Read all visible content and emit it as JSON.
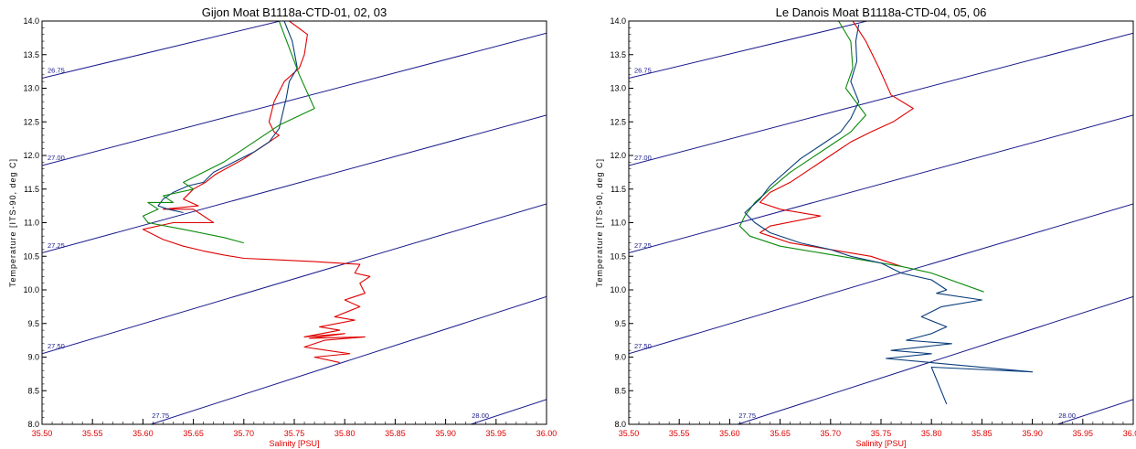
{
  "chart_data": [
    {
      "type": "line",
      "title": "Gijon Moat B1118a-CTD-01, 02, 03",
      "xlabel": "Salinity [PSU]",
      "ylabel": "Temperature [ITS-90, deg C]",
      "xlim": [
        35.5,
        36.0
      ],
      "ylim": [
        8.0,
        14.0
      ],
      "x_ticks": [
        "35.50",
        "35.55",
        "35.60",
        "35.65",
        "35.70",
        "35.75",
        "35.80",
        "35.85",
        "35.90",
        "35.95",
        "36.00"
      ],
      "y_ticks": [
        "8.0",
        "8.5",
        "9.0",
        "9.5",
        "10.0",
        "10.5",
        "11.0",
        "11.5",
        "12.0",
        "12.5",
        "13.0",
        "13.5",
        "14.0"
      ],
      "isopycnals": [
        {
          "label": "26.75",
          "points": [
            [
              35.5,
              13.15
            ],
            [
              36.0,
              14.95
            ]
          ]
        },
        {
          "label": "27.00",
          "points": [
            [
              35.5,
              11.85
            ],
            [
              36.0,
              13.82
            ]
          ]
        },
        {
          "label": "27.25",
          "points": [
            [
              35.5,
              10.55
            ],
            [
              36.0,
              12.6
            ]
          ]
        },
        {
          "label": "27.50",
          "points": [
            [
              35.5,
              9.05
            ],
            [
              36.0,
              11.28
            ]
          ]
        },
        {
          "label": "27.75",
          "points": [
            [
              35.608,
              8.0
            ],
            [
              36.0,
              9.9
            ]
          ]
        },
        {
          "label": "28.00",
          "points": [
            [
              35.925,
              8.0
            ],
            [
              36.0,
              8.37
            ]
          ]
        }
      ],
      "series": [
        {
          "color": "#e00000",
          "x": [
            35.745,
            35.763,
            35.76,
            35.755,
            35.74,
            35.73,
            35.725,
            35.73,
            35.735,
            35.73,
            35.72,
            35.71,
            35.7,
            35.688,
            35.672,
            35.662,
            35.65,
            35.64,
            35.655,
            35.62,
            35.65,
            35.67,
            35.63,
            35.6,
            35.62,
            35.64,
            35.66,
            35.68,
            35.7,
            35.73,
            35.77,
            35.815,
            35.81,
            35.825,
            35.815,
            35.82,
            35.8,
            35.815,
            35.79,
            35.81,
            35.775,
            35.795,
            35.76,
            35.8,
            35.765,
            35.82,
            35.78,
            35.76,
            35.805,
            35.77,
            35.795
          ],
          "y": [
            14.0,
            13.8,
            13.5,
            13.3,
            13.1,
            12.8,
            12.5,
            12.35,
            12.3,
            12.25,
            12.15,
            12.05,
            11.95,
            11.85,
            11.72,
            11.6,
            11.5,
            11.35,
            11.25,
            11.2,
            11.2,
            11.0,
            11.0,
            10.9,
            10.75,
            10.65,
            10.58,
            10.52,
            10.47,
            10.45,
            10.42,
            10.38,
            10.25,
            10.2,
            10.1,
            9.95,
            9.85,
            9.75,
            9.6,
            9.55,
            9.45,
            9.4,
            9.3,
            9.35,
            9.28,
            9.3,
            9.25,
            9.15,
            9.05,
            9.0,
            8.92
          ]
        },
        {
          "color": "#0a3d7a",
          "x": [
            35.74,
            35.748,
            35.753,
            35.745,
            35.742,
            35.738,
            35.735,
            35.73,
            35.725,
            35.71,
            35.69,
            35.67,
            35.66,
            35.645,
            35.63,
            35.62,
            35.615,
            35.625,
            35.64
          ],
          "y": [
            14.0,
            13.7,
            13.3,
            13.1,
            12.85,
            12.6,
            12.4,
            12.3,
            12.2,
            12.05,
            11.9,
            11.75,
            11.6,
            11.55,
            11.45,
            11.35,
            11.25,
            11.2,
            11.15
          ]
        },
        {
          "color": "#0a8a0a",
          "x": [
            35.735,
            35.745,
            35.755,
            35.77,
            35.735,
            35.72,
            35.7,
            35.68,
            35.66,
            35.64,
            35.65,
            35.62,
            35.63,
            35.605,
            35.615,
            35.6,
            35.605,
            35.64,
            35.68,
            35.7
          ],
          "y": [
            14.0,
            13.6,
            13.2,
            12.7,
            12.45,
            12.3,
            12.1,
            11.9,
            11.75,
            11.6,
            11.5,
            11.4,
            11.3,
            11.3,
            11.2,
            11.1,
            11.0,
            10.9,
            10.78,
            10.7
          ]
        }
      ]
    },
    {
      "type": "line",
      "title": "Le Danois Moat B1118a-CTD-04, 05, 06",
      "xlabel": "Salinity [PSU]",
      "ylabel": "Temperature [ITS-90, deg C]",
      "xlim": [
        35.5,
        36.0
      ],
      "ylim": [
        8.0,
        14.0
      ],
      "x_ticks": [
        "35.50",
        "35.55",
        "35.60",
        "35.65",
        "35.70",
        "35.75",
        "35.80",
        "35.85",
        "35.90",
        "35.95",
        "36.00"
      ],
      "y_ticks": [
        "8.0",
        "8.5",
        "9.0",
        "9.5",
        "10.0",
        "10.5",
        "11.0",
        "11.5",
        "12.0",
        "12.5",
        "13.0",
        "13.5",
        "14.0"
      ],
      "isopycnals": [
        {
          "label": "26.75",
          "points": [
            [
              35.5,
              13.15
            ],
            [
              36.0,
              14.95
            ]
          ]
        },
        {
          "label": "27.00",
          "points": [
            [
              35.5,
              11.85
            ],
            [
              36.0,
              13.82
            ]
          ]
        },
        {
          "label": "27.25",
          "points": [
            [
              35.5,
              10.55
            ],
            [
              36.0,
              12.6
            ]
          ]
        },
        {
          "label": "27.50",
          "points": [
            [
              35.5,
              9.05
            ],
            [
              36.0,
              11.28
            ]
          ]
        },
        {
          "label": "27.75",
          "points": [
            [
              35.608,
              8.0
            ],
            [
              36.0,
              9.9
            ]
          ]
        },
        {
          "label": "28.00",
          "points": [
            [
              35.925,
              8.0
            ],
            [
              36.0,
              8.37
            ]
          ]
        }
      ],
      "series": [
        {
          "color": "#e00000",
          "x": [
            35.722,
            35.735,
            35.748,
            35.76,
            35.782,
            35.762,
            35.74,
            35.72,
            35.7,
            35.68,
            35.66,
            35.64,
            35.63,
            35.65,
            35.69,
            35.64,
            35.63,
            35.64,
            35.66,
            35.7,
            35.74,
            35.77
          ],
          "y": [
            14.0,
            13.7,
            13.3,
            12.9,
            12.7,
            12.5,
            12.35,
            12.2,
            12.0,
            11.8,
            11.6,
            11.45,
            11.3,
            11.2,
            11.1,
            10.95,
            10.85,
            10.8,
            10.7,
            10.6,
            10.5,
            10.35
          ]
        },
        {
          "color": "#0a8a0a",
          "x": [
            35.708,
            35.72,
            35.722,
            35.715,
            35.735,
            35.72,
            35.7,
            35.68,
            35.66,
            35.64,
            35.625,
            35.615,
            35.61,
            35.62,
            35.65,
            35.69,
            35.73,
            35.77,
            35.8,
            35.852
          ],
          "y": [
            14.0,
            13.7,
            13.3,
            13.0,
            12.6,
            12.35,
            12.15,
            11.95,
            11.75,
            11.5,
            11.3,
            11.1,
            10.95,
            10.8,
            10.65,
            10.55,
            10.45,
            10.35,
            10.25,
            9.97
          ]
        },
        {
          "color": "#0a3d7a",
          "x": [
            35.728,
            35.725,
            35.726,
            35.72,
            35.728,
            35.72,
            35.71,
            35.69,
            35.67,
            35.655,
            35.64,
            35.63,
            35.615,
            35.625,
            35.64,
            35.67,
            35.7,
            35.72,
            35.75,
            35.77,
            35.8,
            35.815,
            35.805,
            35.85,
            35.81,
            35.79,
            35.815,
            35.8,
            35.775,
            35.82,
            35.76,
            35.8,
            35.755,
            35.9,
            35.8,
            35.815
          ],
          "y": [
            13.95,
            13.7,
            13.4,
            13.1,
            12.8,
            12.55,
            12.35,
            12.15,
            11.95,
            11.75,
            11.55,
            11.35,
            11.15,
            11.0,
            10.85,
            10.7,
            10.6,
            10.5,
            10.4,
            10.25,
            10.15,
            10.0,
            9.95,
            9.85,
            9.75,
            9.6,
            9.45,
            9.35,
            9.25,
            9.2,
            9.1,
            9.05,
            8.98,
            8.78,
            8.85,
            8.3
          ]
        }
      ]
    }
  ]
}
